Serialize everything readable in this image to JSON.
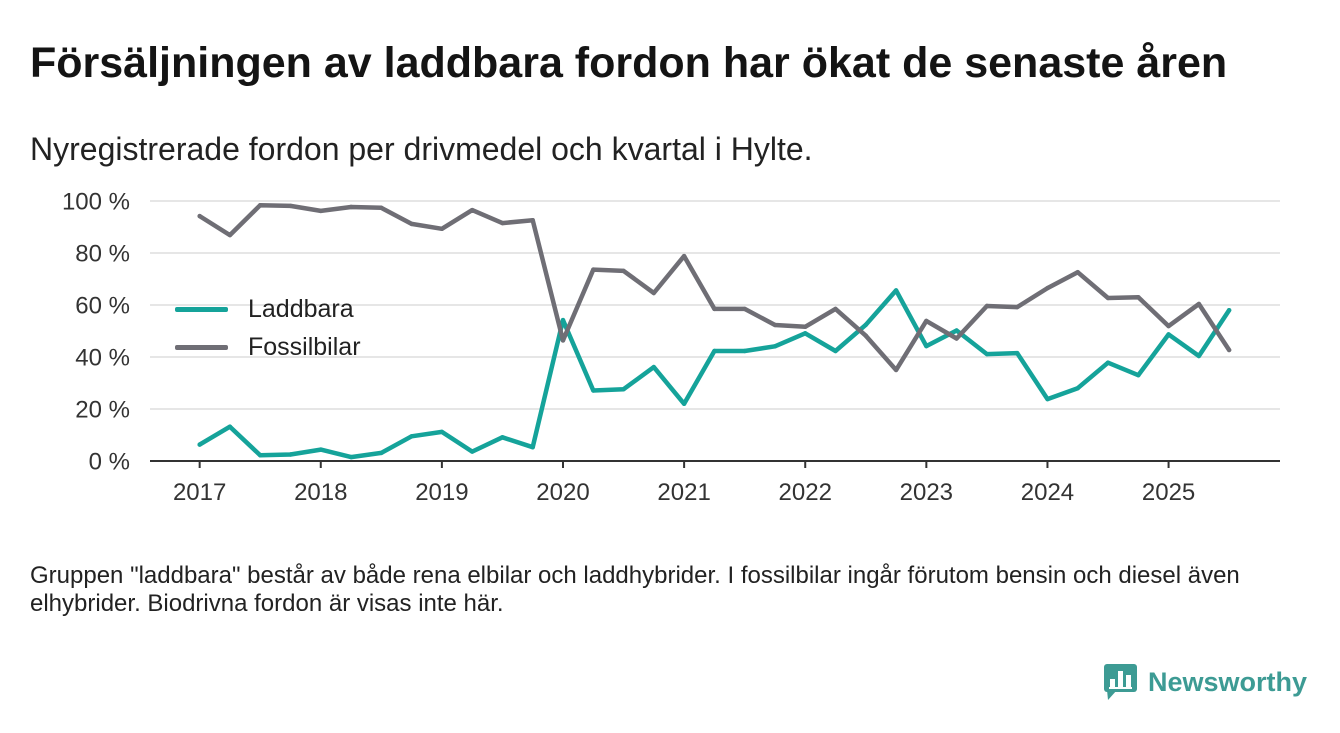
{
  "chart_data": {
    "type": "line",
    "title": "Försäljningen av laddbara fordon har ökat de senaste åren",
    "subtitle": "Nyregistrerade fordon per drivmedel och kvartal i Hylte.",
    "xlabel": "",
    "ylabel": "",
    "xlim": [
      2016.59,
      2025.92
    ],
    "ylim": [
      0,
      100
    ],
    "xticks": [
      2017,
      2018,
      2019,
      2020,
      2021,
      2022,
      2023,
      2024,
      2025
    ],
    "xtick_labels": [
      "2017",
      "2018",
      "2019",
      "2020",
      "2021",
      "2022",
      "2023",
      "2024",
      "2025"
    ],
    "yticks": [
      0,
      20,
      40,
      60,
      80,
      100
    ],
    "ytick_labels": [
      "0 %",
      "20 %",
      "40 %",
      "60 %",
      "80 %",
      "100 %"
    ],
    "grid": true,
    "legend": "left",
    "x": [
      2017,
      2017.25,
      2017.5,
      2017.75,
      2018,
      2018.25,
      2018.5,
      2018.75,
      2019,
      2019.25,
      2019.5,
      2019.75,
      2020,
      2020.25,
      2020.5,
      2020.75,
      2021,
      2021.25,
      2021.5,
      2021.75,
      2022,
      2022.25,
      2022.5,
      2022.75,
      2023,
      2023.25,
      2023.5,
      2023.75,
      2024,
      2024.25,
      2024.5,
      2024.75,
      2025,
      2025.25,
      2025.5
    ],
    "series": [
      {
        "name": "Laddbara",
        "color": "#15a39a",
        "values": [
          6.3,
          13.2,
          2.2,
          2.5,
          4.4,
          1.5,
          3.1,
          9.5,
          11.2,
          3.6,
          9.1,
          5.3,
          54.2,
          27.1,
          27.6,
          36.1,
          22.0,
          42.3,
          42.3,
          44.1,
          49.1,
          42.3,
          52.4,
          65.6,
          44.2,
          50.2,
          41.1,
          41.5,
          23.8,
          28.0,
          37.8,
          33.0,
          48.7,
          40.4,
          58.0
        ]
      },
      {
        "name": "Fossilbilar",
        "color": "#6f6e75",
        "values": [
          94.2,
          86.9,
          98.4,
          98.1,
          96.2,
          97.7,
          97.4,
          91.2,
          89.3,
          96.5,
          91.5,
          92.6,
          46.4,
          73.6,
          73.1,
          64.6,
          78.8,
          58.5,
          58.5,
          52.3,
          51.6,
          58.5,
          48.2,
          35.0,
          53.9,
          47.1,
          59.6,
          59.2,
          66.5,
          72.6,
          62.7,
          63.0,
          51.9,
          60.4,
          42.7
        ]
      }
    ]
  },
  "footer": {
    "note": "Gruppen \"laddbara\" består av både rena elbilar och laddhybrider. I fossilbilar ingår förutom bensin och diesel även elhybrider. Biodrivna fordon är visas inte här."
  },
  "brand": {
    "name": "Newsworthy",
    "icon": "newsworthy-logo-icon",
    "color": "#3d9b94"
  }
}
